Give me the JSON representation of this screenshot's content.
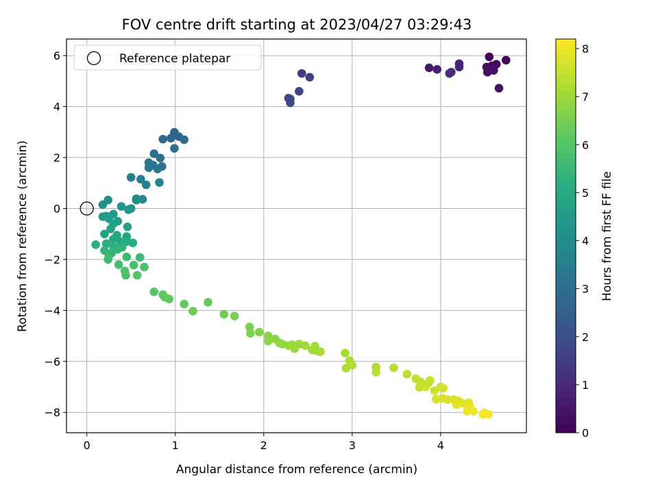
{
  "chart_data": {
    "type": "scatter",
    "title": "FOV centre drift starting at 2023/04/27 03:29:43",
    "xlabel": "Angular distance from reference (arcmin)",
    "ylabel": "Rotation from reference (arcmin)",
    "xlim": [
      -0.23,
      4.97
    ],
    "ylim": [
      -8.8,
      6.65
    ],
    "xticks": [
      0,
      1,
      2,
      3,
      4
    ],
    "yticks": [
      -8,
      -6,
      -4,
      -2,
      0,
      2,
      4,
      6
    ],
    "grid": true,
    "legend": {
      "placement": "top-left",
      "entries": [
        "Reference platepar"
      ]
    },
    "reference_point": {
      "x": 0,
      "y": 0,
      "label": "Reference platepar"
    },
    "colorbar": {
      "label": "Hours from first FF file",
      "min": 0,
      "max": 8.2,
      "ticks": [
        0,
        1,
        2,
        3,
        4,
        5,
        6,
        7,
        8
      ],
      "colormap": "viridis"
    },
    "points": [
      {
        "x": 4.55,
        "y": 5.95,
        "c": 0.05
      },
      {
        "x": 4.74,
        "y": 5.82,
        "c": 0.1
      },
      {
        "x": 4.63,
        "y": 5.66,
        "c": 0.15
      },
      {
        "x": 4.58,
        "y": 5.6,
        "c": 0.2
      },
      {
        "x": 4.52,
        "y": 5.55,
        "c": 0.25
      },
      {
        "x": 4.57,
        "y": 5.5,
        "c": 0.3
      },
      {
        "x": 4.53,
        "y": 5.35,
        "c": 0.35
      },
      {
        "x": 4.6,
        "y": 5.42,
        "c": 0.4
      },
      {
        "x": 4.66,
        "y": 4.72,
        "c": 0.45
      },
      {
        "x": 3.87,
        "y": 5.52,
        "c": 0.6
      },
      {
        "x": 3.96,
        "y": 5.46,
        "c": 0.7
      },
      {
        "x": 4.21,
        "y": 5.68,
        "c": 0.8
      },
      {
        "x": 4.21,
        "y": 5.55,
        "c": 0.9
      },
      {
        "x": 4.12,
        "y": 5.35,
        "c": 1.0
      },
      {
        "x": 4.1,
        "y": 5.3,
        "c": 1.05
      },
      {
        "x": 2.43,
        "y": 5.3,
        "c": 1.5
      },
      {
        "x": 2.52,
        "y": 5.15,
        "c": 1.6
      },
      {
        "x": 2.4,
        "y": 4.6,
        "c": 1.7
      },
      {
        "x": 2.28,
        "y": 4.33,
        "c": 1.8
      },
      {
        "x": 2.3,
        "y": 4.3,
        "c": 1.85
      },
      {
        "x": 2.3,
        "y": 4.15,
        "c": 1.9
      },
      {
        "x": 0.99,
        "y": 2.99,
        "c": 2.6
      },
      {
        "x": 1.04,
        "y": 2.82,
        "c": 2.7
      },
      {
        "x": 0.95,
        "y": 2.76,
        "c": 2.75
      },
      {
        "x": 0.86,
        "y": 2.72,
        "c": 2.8
      },
      {
        "x": 1.1,
        "y": 2.7,
        "c": 2.85
      },
      {
        "x": 0.99,
        "y": 2.36,
        "c": 2.9
      },
      {
        "x": 0.76,
        "y": 2.15,
        "c": 3.0
      },
      {
        "x": 0.83,
        "y": 1.98,
        "c": 3.05
      },
      {
        "x": 0.7,
        "y": 1.8,
        "c": 3.1
      },
      {
        "x": 0.85,
        "y": 1.65,
        "c": 3.15
      },
      {
        "x": 0.75,
        "y": 1.7,
        "c": 3.2
      },
      {
        "x": 0.7,
        "y": 1.6,
        "c": 3.25
      },
      {
        "x": 0.8,
        "y": 1.55,
        "c": 3.3
      },
      {
        "x": 0.5,
        "y": 1.22,
        "c": 3.45
      },
      {
        "x": 0.61,
        "y": 1.15,
        "c": 3.5
      },
      {
        "x": 0.67,
        "y": 0.93,
        "c": 3.6
      },
      {
        "x": 0.82,
        "y": 1.02,
        "c": 3.7
      },
      {
        "x": 0.56,
        "y": 0.38,
        "c": 3.85
      },
      {
        "x": 0.63,
        "y": 0.36,
        "c": 3.9
      },
      {
        "x": 0.56,
        "y": 0.33,
        "c": 3.95
      },
      {
        "x": 0.24,
        "y": 0.33,
        "c": 4.1
      },
      {
        "x": 0.18,
        "y": 0.15,
        "c": 4.15
      },
      {
        "x": 0.39,
        "y": 0.08,
        "c": 4.25
      },
      {
        "x": 0.5,
        "y": 0.0,
        "c": 4.3
      },
      {
        "x": 0.47,
        "y": -0.05,
        "c": 4.35
      },
      {
        "x": 0.3,
        "y": -0.22,
        "c": 4.4
      },
      {
        "x": 0.22,
        "y": -0.3,
        "c": 4.45
      },
      {
        "x": 0.18,
        "y": -0.32,
        "c": 4.5
      },
      {
        "x": 0.25,
        "y": -0.4,
        "c": 4.55
      },
      {
        "x": 0.35,
        "y": -0.5,
        "c": 4.6
      },
      {
        "x": 0.3,
        "y": -0.6,
        "c": 4.65
      },
      {
        "x": 0.46,
        "y": -0.72,
        "c": 4.7
      },
      {
        "x": 0.27,
        "y": -0.8,
        "c": 4.75
      },
      {
        "x": 0.2,
        "y": -1.0,
        "c": 4.8
      },
      {
        "x": 0.34,
        "y": -1.05,
        "c": 4.85
      },
      {
        "x": 0.45,
        "y": -1.1,
        "c": 4.9
      },
      {
        "x": 0.3,
        "y": -1.2,
        "c": 4.95
      },
      {
        "x": 0.38,
        "y": -1.3,
        "c": 5.0
      },
      {
        "x": 0.45,
        "y": -1.3,
        "c": 5.05
      },
      {
        "x": 0.52,
        "y": -1.35,
        "c": 5.1
      },
      {
        "x": 0.22,
        "y": -1.38,
        "c": 5.15
      },
      {
        "x": 0.1,
        "y": -1.42,
        "c": 5.2
      },
      {
        "x": 0.3,
        "y": -1.5,
        "c": 5.25
      },
      {
        "x": 0.4,
        "y": -1.52,
        "c": 5.3
      },
      {
        "x": 0.35,
        "y": -1.6,
        "c": 5.35
      },
      {
        "x": 0.2,
        "y": -1.65,
        "c": 5.4
      },
      {
        "x": 0.28,
        "y": -1.75,
        "c": 5.45
      },
      {
        "x": 0.25,
        "y": -1.85,
        "c": 5.5
      },
      {
        "x": 0.45,
        "y": -1.9,
        "c": 5.55
      },
      {
        "x": 0.6,
        "y": -1.92,
        "c": 5.6
      },
      {
        "x": 0.24,
        "y": -2.0,
        "c": 5.65
      },
      {
        "x": 0.36,
        "y": -2.2,
        "c": 5.7
      },
      {
        "x": 0.53,
        "y": -2.22,
        "c": 5.75
      },
      {
        "x": 0.65,
        "y": -2.3,
        "c": 5.8
      },
      {
        "x": 0.43,
        "y": -2.45,
        "c": 5.85
      },
      {
        "x": 0.44,
        "y": -2.62,
        "c": 5.9
      },
      {
        "x": 0.57,
        "y": -2.62,
        "c": 5.95
      },
      {
        "x": 0.76,
        "y": -3.27,
        "c": 6.05
      },
      {
        "x": 0.86,
        "y": -3.38,
        "c": 6.1
      },
      {
        "x": 0.88,
        "y": -3.48,
        "c": 6.15
      },
      {
        "x": 0.93,
        "y": -3.55,
        "c": 6.2
      },
      {
        "x": 1.1,
        "y": -3.75,
        "c": 6.25
      },
      {
        "x": 1.37,
        "y": -3.68,
        "c": 6.3
      },
      {
        "x": 1.2,
        "y": -4.03,
        "c": 6.35
      },
      {
        "x": 1.55,
        "y": -4.15,
        "c": 6.4
      },
      {
        "x": 1.67,
        "y": -4.22,
        "c": 6.45
      },
      {
        "x": 1.84,
        "y": -4.65,
        "c": 6.55
      },
      {
        "x": 1.85,
        "y": -4.9,
        "c": 6.6
      },
      {
        "x": 1.95,
        "y": -4.85,
        "c": 6.65
      },
      {
        "x": 2.05,
        "y": -5.0,
        "c": 6.7
      },
      {
        "x": 2.05,
        "y": -5.2,
        "c": 6.75
      },
      {
        "x": 2.13,
        "y": -5.12,
        "c": 6.8
      },
      {
        "x": 2.18,
        "y": -5.28,
        "c": 6.85
      },
      {
        "x": 2.21,
        "y": -5.32,
        "c": 6.9
      },
      {
        "x": 2.28,
        "y": -5.38,
        "c": 6.92
      },
      {
        "x": 2.32,
        "y": -5.35,
        "c": 6.95
      },
      {
        "x": 2.35,
        "y": -5.5,
        "c": 6.97
      },
      {
        "x": 2.4,
        "y": -5.32,
        "c": 7.0
      },
      {
        "x": 2.47,
        "y": -5.38,
        "c": 7.02
      },
      {
        "x": 2.55,
        "y": -5.55,
        "c": 7.05
      },
      {
        "x": 2.58,
        "y": -5.4,
        "c": 7.07
      },
      {
        "x": 2.6,
        "y": -5.58,
        "c": 7.1
      },
      {
        "x": 2.64,
        "y": -5.62,
        "c": 7.12
      },
      {
        "x": 2.92,
        "y": -5.67,
        "c": 7.15
      },
      {
        "x": 2.97,
        "y": -5.97,
        "c": 7.2
      },
      {
        "x": 3.0,
        "y": -6.15,
        "c": 7.22
      },
      {
        "x": 2.93,
        "y": -6.27,
        "c": 7.25
      },
      {
        "x": 3.27,
        "y": -6.22,
        "c": 7.3
      },
      {
        "x": 3.27,
        "y": -6.42,
        "c": 7.32
      },
      {
        "x": 3.47,
        "y": -6.25,
        "c": 7.35
      },
      {
        "x": 3.62,
        "y": -6.5,
        "c": 7.4
      },
      {
        "x": 3.72,
        "y": -6.68,
        "c": 7.45
      },
      {
        "x": 3.77,
        "y": -6.8,
        "c": 7.5
      },
      {
        "x": 3.86,
        "y": -6.85,
        "c": 7.52
      },
      {
        "x": 3.88,
        "y": -6.75,
        "c": 7.55
      },
      {
        "x": 3.76,
        "y": -7.02,
        "c": 7.58
      },
      {
        "x": 3.83,
        "y": -7.0,
        "c": 7.6
      },
      {
        "x": 3.93,
        "y": -7.15,
        "c": 7.62
      },
      {
        "x": 4.0,
        "y": -7.0,
        "c": 7.65
      },
      {
        "x": 4.03,
        "y": -7.05,
        "c": 7.68
      },
      {
        "x": 3.95,
        "y": -7.48,
        "c": 7.7
      },
      {
        "x": 4.02,
        "y": -7.45,
        "c": 7.72
      },
      {
        "x": 4.08,
        "y": -7.5,
        "c": 7.75
      },
      {
        "x": 4.15,
        "y": -7.5,
        "c": 7.78
      },
      {
        "x": 4.2,
        "y": -7.55,
        "c": 7.8
      },
      {
        "x": 4.18,
        "y": -7.7,
        "c": 7.82
      },
      {
        "x": 4.25,
        "y": -7.65,
        "c": 7.85
      },
      {
        "x": 4.32,
        "y": -7.62,
        "c": 7.88
      },
      {
        "x": 4.33,
        "y": -7.75,
        "c": 7.9
      },
      {
        "x": 4.3,
        "y": -7.95,
        "c": 7.95
      },
      {
        "x": 4.37,
        "y": -7.95,
        "c": 8.0
      },
      {
        "x": 4.5,
        "y": -8.02,
        "c": 8.05
      },
      {
        "x": 4.48,
        "y": -8.08,
        "c": 8.1
      },
      {
        "x": 4.54,
        "y": -8.08,
        "c": 8.15
      }
    ]
  }
}
